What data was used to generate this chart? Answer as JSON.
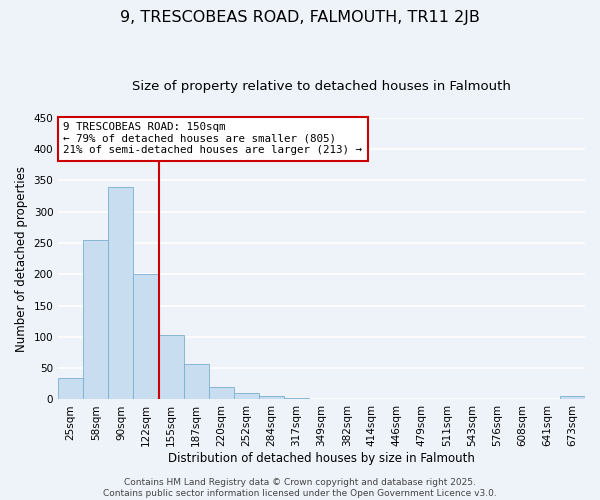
{
  "title": "9, TRESCOBEAS ROAD, FALMOUTH, TR11 2JB",
  "subtitle": "Size of property relative to detached houses in Falmouth",
  "xlabel": "Distribution of detached houses by size in Falmouth",
  "ylabel": "Number of detached properties",
  "bar_labels": [
    "25sqm",
    "58sqm",
    "90sqm",
    "122sqm",
    "155sqm",
    "187sqm",
    "220sqm",
    "252sqm",
    "284sqm",
    "317sqm",
    "349sqm",
    "382sqm",
    "414sqm",
    "446sqm",
    "479sqm",
    "511sqm",
    "543sqm",
    "576sqm",
    "608sqm",
    "641sqm",
    "673sqm"
  ],
  "bar_heights": [
    35,
    255,
    340,
    200,
    103,
    57,
    20,
    11,
    5,
    3,
    0,
    0,
    0,
    0,
    0,
    0,
    0,
    0,
    0,
    0,
    5
  ],
  "bar_color": "#c8ddf0",
  "bar_edge_color": "#7aafd0",
  "vline_x": 3.5,
  "vline_color": "#cc0000",
  "ylim": [
    0,
    450
  ],
  "yticks": [
    0,
    50,
    100,
    150,
    200,
    250,
    300,
    350,
    400,
    450
  ],
  "annotation_lines": [
    "9 TRESCOBEAS ROAD: 150sqm",
    "← 79% of detached houses are smaller (805)",
    "21% of semi-detached houses are larger (213) →"
  ],
  "annotation_box_facecolor": "#ffffff",
  "annotation_box_edgecolor": "#cc0000",
  "footer_lines": [
    "Contains HM Land Registry data © Crown copyright and database right 2025.",
    "Contains public sector information licensed under the Open Government Licence v3.0."
  ],
  "background_color": "#eef3f9",
  "grid_color": "#ffffff",
  "title_fontsize": 11.5,
  "subtitle_fontsize": 9.5,
  "axis_label_fontsize": 8.5,
  "tick_fontsize": 7.5,
  "annotation_fontsize": 7.8,
  "footer_fontsize": 6.5
}
